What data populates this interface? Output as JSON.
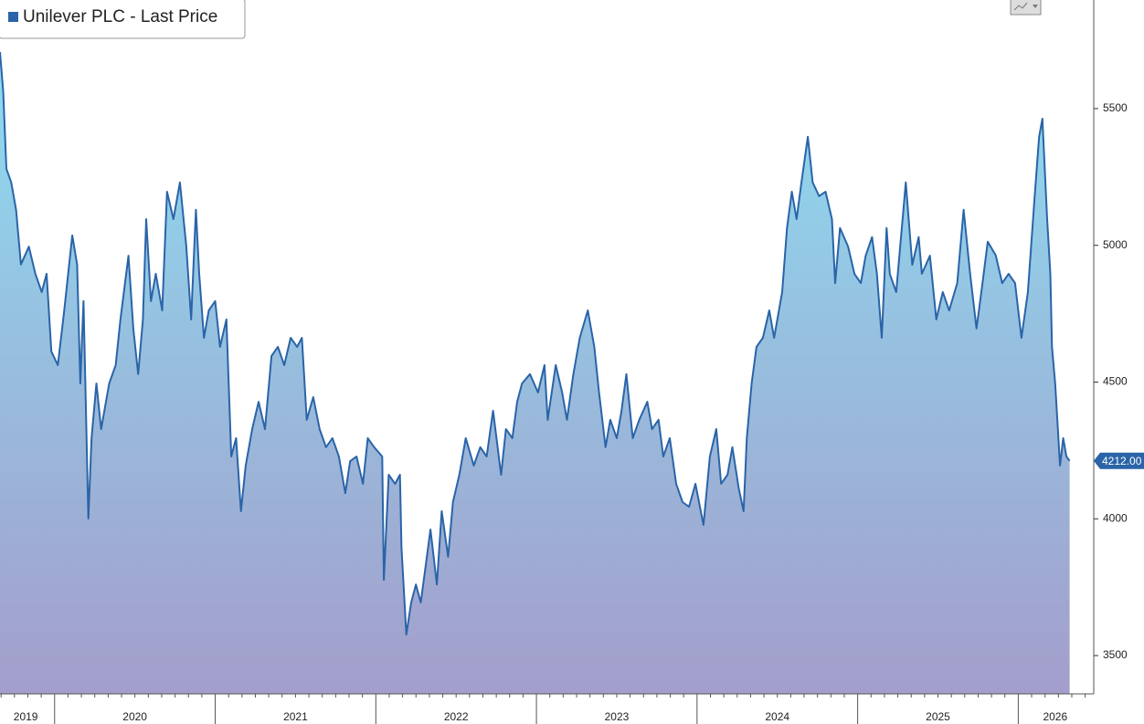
{
  "chart_data": {
    "type": "area",
    "series": [
      {
        "name": "Unilever PLC - Last Price",
        "color": "#2a64a8",
        "x": [
          2019.66,
          2019.68,
          2019.7,
          2019.73,
          2019.76,
          2019.79,
          2019.84,
          2019.88,
          2019.92,
          2019.95,
          2019.98,
          2020.02,
          2020.06,
          2020.11,
          2020.14,
          2020.16,
          2020.18,
          2020.21,
          2020.23,
          2020.26,
          2020.29,
          2020.34,
          2020.38,
          2020.41,
          2020.46,
          2020.49,
          2020.52,
          2020.55,
          2020.57,
          2020.6,
          2020.63,
          2020.67,
          2020.7,
          2020.74,
          2020.78,
          2020.82,
          2020.85,
          2020.88,
          2020.9,
          2020.93,
          2020.96,
          2021.0,
          2021.03,
          2021.07,
          2021.1,
          2021.13,
          2021.16,
          2021.19,
          2021.23,
          2021.27,
          2021.31,
          2021.35,
          2021.39,
          2021.43,
          2021.47,
          2021.51,
          2021.54,
          2021.57,
          2021.61,
          2021.65,
          2021.69,
          2021.73,
          2021.77,
          2021.81,
          2021.84,
          2021.88,
          2021.92,
          2021.95,
          2021.99,
          2022.04,
          2022.05,
          2022.08,
          2022.12,
          2022.15,
          2022.16,
          2022.19,
          2022.22,
          2022.25,
          2022.28,
          2022.31,
          2022.34,
          2022.36,
          2022.38,
          2022.41,
          2022.45,
          2022.48,
          2022.52,
          2022.56,
          2022.61,
          2022.65,
          2022.69,
          2022.73,
          2022.78,
          2022.81,
          2022.85,
          2022.88,
          2022.91,
          2022.96,
          2023.01,
          2023.05,
          2023.07,
          2023.12,
          2023.16,
          2023.19,
          2023.23,
          2023.27,
          2023.32,
          2023.36,
          2023.39,
          2023.43,
          2023.46,
          2023.5,
          2023.53,
          2023.56,
          2023.6,
          2023.64,
          2023.69,
          2023.72,
          2023.76,
          2023.79,
          2023.83,
          2023.87,
          2023.91,
          2023.95,
          2023.99,
          2024.04,
          2024.08,
          2024.12,
          2024.15,
          2024.19,
          2024.22,
          2024.26,
          2024.29,
          2024.31,
          2024.34,
          2024.37,
          2024.41,
          2024.45,
          2024.48,
          2024.53,
          2024.56,
          2024.59,
          2024.62,
          2024.65,
          2024.69,
          2024.72,
          2024.76,
          2024.8,
          2024.84,
          2024.86,
          2024.89,
          2024.94,
          2024.98,
          2025.02,
          2025.05,
          2025.09,
          2025.12,
          2025.15,
          2025.18,
          2025.2,
          2025.24,
          2025.28,
          2025.3,
          2025.34,
          2025.38,
          2025.4,
          2025.45,
          2025.49,
          2025.53,
          2025.57,
          2025.62,
          2025.66,
          2025.7,
          2025.74,
          2025.77,
          2025.81,
          2025.86,
          2025.9,
          2025.94,
          2025.98,
          2026.02,
          2026.06,
          2026.1,
          2026.13,
          2026.15,
          2026.18,
          2026.2,
          2026.21,
          2026.23,
          2026.26,
          2026.28,
          2026.3,
          2026.32
        ],
        "values": [
          5707,
          5563,
          5280,
          5230,
          5130,
          4930,
          4995,
          4896,
          4829,
          4896,
          4612,
          4562,
          4762,
          5036,
          4930,
          4495,
          4796,
          4001,
          4295,
          4495,
          4328,
          4495,
          4562,
          4729,
          4962,
          4696,
          4529,
          4729,
          5096,
          4796,
          4896,
          4762,
          5196,
          5096,
          5230,
          4996,
          4729,
          5130,
          4896,
          4662,
          4762,
          4796,
          4629,
          4729,
          4228,
          4295,
          4028,
          4195,
          4328,
          4428,
          4328,
          4595,
          4629,
          4562,
          4662,
          4629,
          4662,
          4362,
          4445,
          4328,
          4262,
          4295,
          4228,
          4094,
          4211,
          4228,
          4128,
          4295,
          4262,
          4228,
          3777,
          4161,
          4128,
          4161,
          3894,
          3577,
          3694,
          3760,
          3694,
          3827,
          3961,
          3861,
          3760,
          4028,
          3861,
          4061,
          4161,
          4295,
          4195,
          4262,
          4228,
          4395,
          4161,
          4328,
          4295,
          4428,
          4495,
          4529,
          4462,
          4562,
          4362,
          4562,
          4462,
          4362,
          4529,
          4662,
          4762,
          4629,
          4462,
          4262,
          4362,
          4295,
          4395,
          4529,
          4295,
          4362,
          4428,
          4328,
          4362,
          4228,
          4295,
          4128,
          4061,
          4044,
          4128,
          3978,
          4228,
          4328,
          4128,
          4161,
          4262,
          4111,
          4028,
          4295,
          4495,
          4629,
          4662,
          4762,
          4662,
          4829,
          5063,
          5196,
          5096,
          5230,
          5397,
          5230,
          5180,
          5196,
          5096,
          4862,
          5063,
          4996,
          4896,
          4862,
          4962,
          5030,
          4896,
          4662,
          5063,
          4896,
          4829,
          5096,
          5230,
          4929,
          5030,
          4896,
          4962,
          4729,
          4829,
          4762,
          4862,
          5130,
          4896,
          4696,
          4829,
          5013,
          4963,
          4862,
          4896,
          4862,
          4662,
          4829,
          5163,
          5397,
          5463,
          5096,
          4896,
          4629,
          4495,
          4195,
          4295,
          4228,
          4212
        ]
      }
    ],
    "xlim": [
      2019.66,
      2026.47
    ],
    "xticks": [
      {
        "value": 2019.82,
        "label": "2019"
      },
      {
        "value": 2020.5,
        "label": "2020"
      },
      {
        "value": 2021.5,
        "label": "2021"
      },
      {
        "value": 2022.5,
        "label": "2022"
      },
      {
        "value": 2023.5,
        "label": "2023"
      },
      {
        "value": 2024.5,
        "label": "2024"
      },
      {
        "value": 2025.5,
        "label": "2025"
      },
      {
        "value": 2026.23,
        "label": "2026"
      }
    ],
    "ylim": [
      3360,
      5897
    ],
    "yticks": [
      3500,
      4000,
      4500,
      5000,
      5500
    ],
    "last_price": {
      "value": 4212,
      "label": "4212.00"
    },
    "fill_top": "#8ddcf0",
    "fill_bottom": "#a39ecb"
  }
}
